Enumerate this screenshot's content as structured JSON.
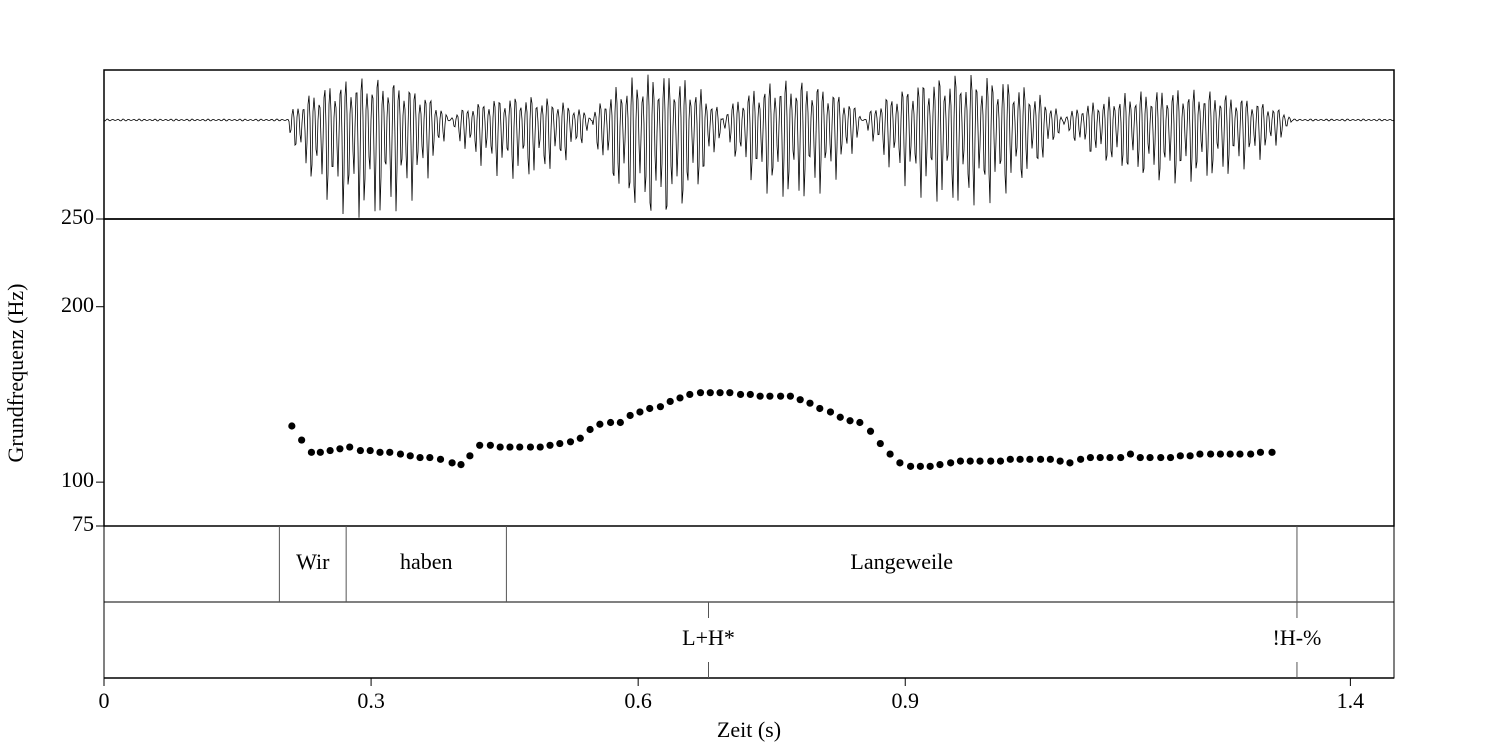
{
  "chart_data": {
    "type": "scatter",
    "x_label": "Zeit (s)",
    "y_label": "Grundfrequenz (Hz)",
    "color": "#000000",
    "xlim": [
      0,
      1.449
    ],
    "ylim": [
      75,
      250
    ],
    "xticks": [
      0,
      0.3,
      0.6,
      0.9,
      1.4
    ],
    "yticks": [
      75,
      100,
      200,
      250
    ],
    "x": [
      0.211,
      0.222,
      0.233,
      0.243,
      0.254,
      0.265,
      0.276,
      0.288,
      0.299,
      0.31,
      0.321,
      0.333,
      0.344,
      0.355,
      0.366,
      0.378,
      0.391,
      0.401,
      0.411,
      0.422,
      0.434,
      0.445,
      0.456,
      0.467,
      0.479,
      0.49,
      0.501,
      0.512,
      0.524,
      0.535,
      0.546,
      0.557,
      0.569,
      0.58,
      0.591,
      0.602,
      0.613,
      0.625,
      0.636,
      0.647,
      0.658,
      0.67,
      0.681,
      0.692,
      0.703,
      0.715,
      0.726,
      0.737,
      0.748,
      0.76,
      0.771,
      0.782,
      0.793,
      0.804,
      0.816,
      0.827,
      0.838,
      0.849,
      0.861,
      0.872,
      0.883,
      0.894,
      0.906,
      0.917,
      0.928,
      0.939,
      0.951,
      0.962,
      0.973,
      0.984,
      0.996,
      1.007,
      1.018,
      1.029,
      1.04,
      1.052,
      1.063,
      1.074,
      1.085,
      1.097,
      1.108,
      1.119,
      1.13,
      1.142,
      1.153,
      1.164,
      1.175,
      1.187,
      1.198,
      1.209,
      1.22,
      1.231,
      1.243,
      1.254,
      1.265,
      1.276,
      1.288,
      1.299,
      1.312
    ],
    "values": [
      132,
      124,
      117,
      117,
      118,
      119,
      120,
      118,
      118,
      117,
      117,
      116,
      115,
      114,
      114,
      113,
      111,
      110,
      115,
      121,
      121,
      120,
      120,
      120,
      120,
      120,
      121,
      122,
      123,
      125,
      130,
      133,
      134,
      134,
      138,
      140,
      142,
      143,
      146,
      148,
      150,
      151,
      151,
      151,
      151,
      150,
      150,
      149,
      149,
      149,
      149,
      147,
      145,
      142,
      140,
      137,
      135,
      134,
      129,
      122,
      116,
      111,
      109,
      109,
      109,
      110,
      111,
      112,
      112,
      112,
      112,
      112,
      113,
      113,
      113,
      113,
      113,
      112,
      111,
      113,
      114,
      114,
      114,
      114,
      116,
      114,
      114,
      114,
      114,
      115,
      115,
      116,
      116,
      116,
      116,
      116,
      116,
      117,
      117
    ],
    "word_tier": {
      "boundaries": [
        0.197,
        0.272,
        0.452,
        1.34
      ],
      "labels": [
        "Wir",
        "haben",
        "Langeweile"
      ]
    },
    "tone_tier": {
      "times": [
        0.679,
        1.34
      ],
      "labels": [
        "L+H*",
        "!H-%"
      ]
    }
  }
}
